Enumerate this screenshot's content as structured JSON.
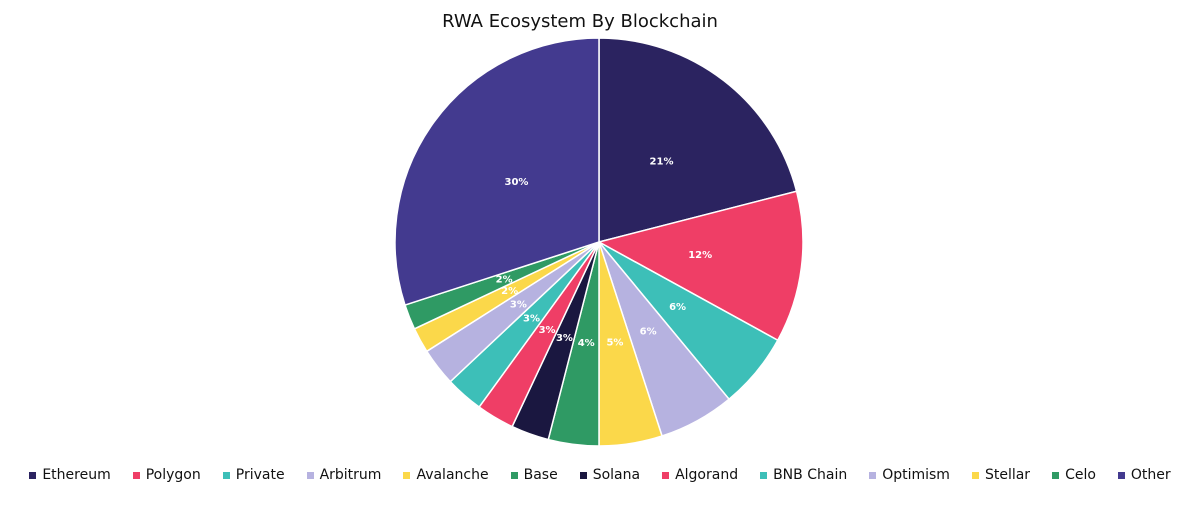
{
  "chart_data": {
    "type": "pie",
    "title": "RWA Ecosystem By Blockchain",
    "categories": [
      "Ethereum",
      "Polygon",
      "Private",
      "Arbitrum",
      "Avalanche",
      "Base",
      "Solana",
      "Algorand",
      "BNB Chain",
      "Optimism",
      "Stellar",
      "Celo",
      "Other"
    ],
    "values": [
      21,
      12,
      6,
      6,
      5,
      4,
      3,
      3,
      3,
      3,
      2,
      2,
      30
    ],
    "value_labels": [
      "21%",
      "12%",
      "6%",
      "6%",
      "5%",
      "4%",
      "3%",
      "3%",
      "3%",
      "3%",
      "2%",
      "2%",
      "30%"
    ],
    "colors": [
      "#2b2360",
      "#ef3e66",
      "#3dbfb8",
      "#b6b2e0",
      "#fbd84a",
      "#2f9a64",
      "#1a1740",
      "#ef3e66",
      "#3dbfb8",
      "#b6b2e0",
      "#fbd84a",
      "#2f9a64",
      "#433a8f"
    ],
    "legend": "bottom"
  }
}
